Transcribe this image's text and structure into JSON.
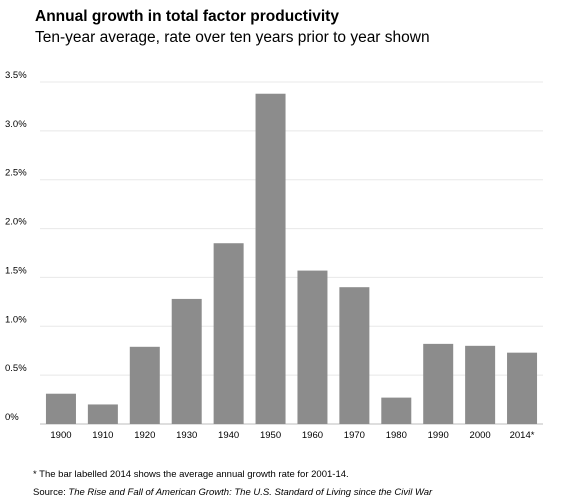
{
  "chart_data": {
    "type": "bar",
    "title": "Annual growth in total factor productivity",
    "subtitle": "Ten-year average, rate over ten years prior to year shown",
    "categories": [
      "1900",
      "1910",
      "1920",
      "1930",
      "1940",
      "1950",
      "1960",
      "1970",
      "1980",
      "1990",
      "2000",
      "2014*"
    ],
    "values": [
      0.31,
      0.2,
      0.79,
      1.28,
      1.85,
      3.38,
      1.57,
      1.4,
      0.27,
      0.82,
      0.8,
      0.73
    ],
    "ylim": [
      0,
      3.5
    ],
    "yticks": [
      "0%",
      "0.5%",
      "1.0%",
      "1.5%",
      "2.0%",
      "2.5%",
      "3.0%",
      "3.5%"
    ],
    "xlabel": "",
    "ylabel": "",
    "grid": true,
    "bar_color": "#8c8c8c",
    "footnote": "* The bar labelled 2014 shows the average annual growth rate for 2001-14.",
    "source_label": "Source:",
    "source_title": "The Rise and Fall of American Growth: The U.S. Standard of Living since the Civil War"
  }
}
